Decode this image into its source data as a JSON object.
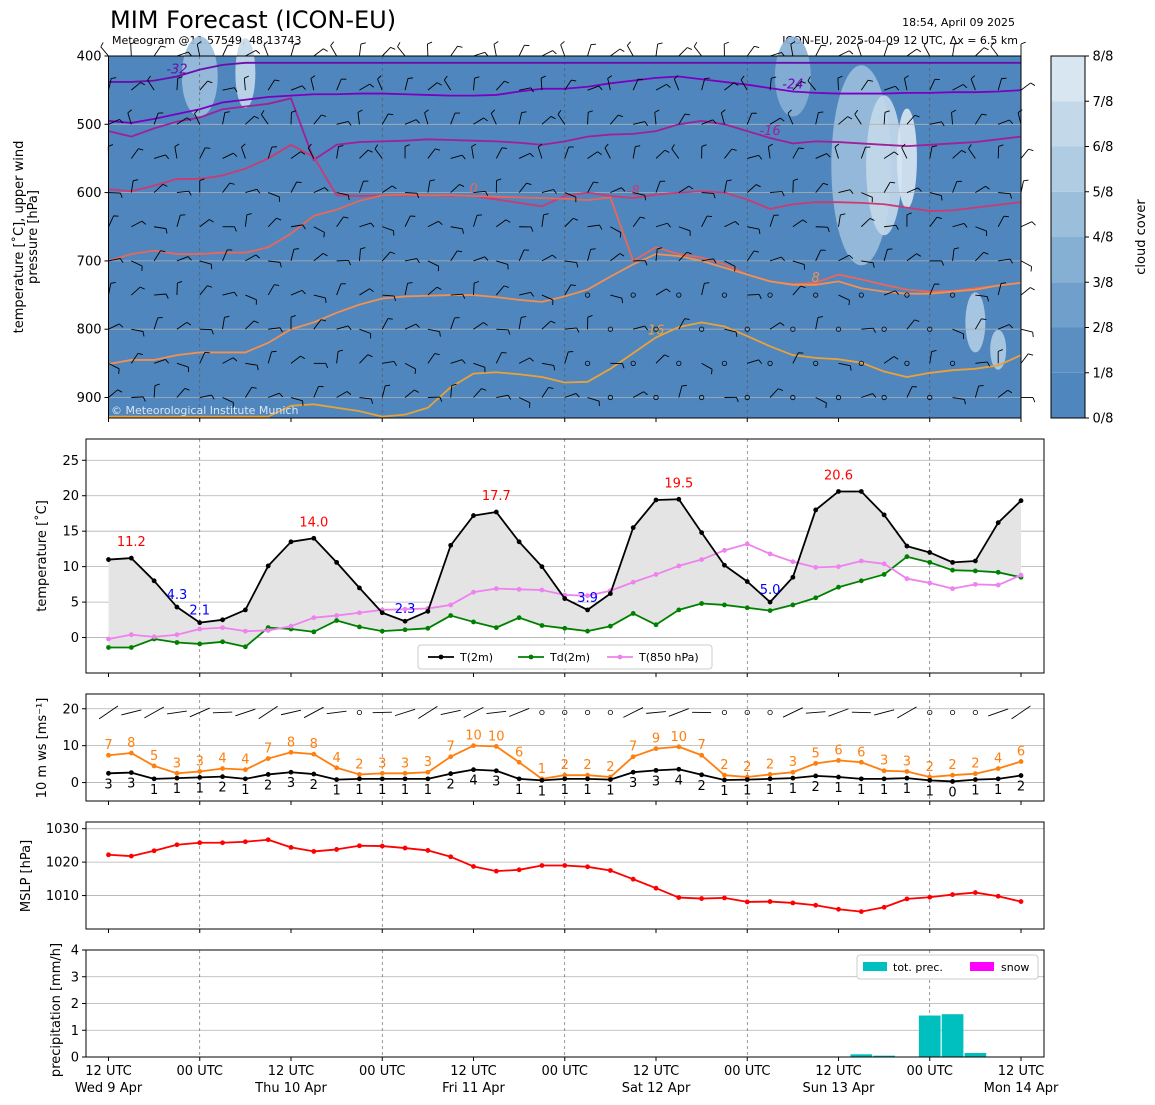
{
  "header": {
    "title": "MIM Forecast (ICON-EU)",
    "subtitle": "Meteogram @11.57549, 48.13743",
    "timestamp": "18:54, April 09 2025",
    "run_info": "ICON-EU, 2025-04-09 12 UTC, Δx = 6.5 km",
    "copyright": "© Meteorological Institute Munich"
  },
  "colors": {
    "t2m": "#000000",
    "td2m": "#008000",
    "t850": "#ee82ee",
    "mslp": "#ff0000",
    "wind_speed": "#ff7f0e",
    "wind_gust": "#000000",
    "precip": "#00bfbf",
    "snow": "#ff00ff",
    "cloud_base": "#4f86bd",
    "max_label": "#ff0000",
    "min_label": "#0000ff"
  },
  "x_axis": {
    "ticks": [
      {
        "line1": "12 UTC",
        "line2": "Wed 9 Apr"
      },
      {
        "line1": "00 UTC",
        "line2": ""
      },
      {
        "line1": "12 UTC",
        "line2": "Thu 10 Apr"
      },
      {
        "line1": "00 UTC",
        "line2": ""
      },
      {
        "line1": "12 UTC",
        "line2": "Fri 11 Apr"
      },
      {
        "line1": "00 UTC",
        "line2": ""
      },
      {
        "line1": "12 UTC",
        "line2": "Sat 12 Apr"
      },
      {
        "line1": "00 UTC",
        "line2": ""
      },
      {
        "line1": "12 UTC",
        "line2": "Sun 13 Apr"
      },
      {
        "line1": "00 UTC",
        "line2": ""
      },
      {
        "line1": "12 UTC",
        "line2": "Mon 14 Apr"
      }
    ]
  },
  "chart_data": [
    {
      "type": "heatmap",
      "name": "upper-air",
      "ylabel": "temperature [˚C], upper wind\npressure [hPa]",
      "yticks": [
        400,
        500,
        600,
        700,
        800,
        900
      ],
      "ylim": [
        930,
        400
      ],
      "colorbar": {
        "label": "cloud cover",
        "ticks": [
          "0/8",
          "1/8",
          "2/8",
          "3/8",
          "4/8",
          "5/8",
          "6/8",
          "7/8",
          "8/8"
        ],
        "colors": [
          "#4f86bd",
          "#5b8fc2",
          "#709fcb",
          "#86afd4",
          "#9bbedb",
          "#afcce3",
          "#c3d9ea",
          "#d8e6f1",
          "#edf3f8"
        ]
      },
      "isotherms": [
        {
          "label": "-32",
          "color": "#6a0dad",
          "p": [
            438,
            438,
            436,
            430,
            420,
            413,
            410,
            410,
            410,
            410,
            410,
            410,
            410,
            410,
            410,
            410,
            410,
            410,
            410,
            410,
            410,
            410,
            410,
            410,
            410,
            410,
            410,
            410,
            410,
            410,
            410,
            410,
            410,
            410,
            410,
            410,
            410,
            410,
            410,
            410,
            410
          ]
        },
        {
          "label": "-24",
          "color": "#7b00c0",
          "p": [
            495,
            498,
            492,
            485,
            478,
            468,
            464,
            460,
            458,
            456,
            456,
            455,
            455,
            456,
            457,
            458,
            458,
            457,
            452,
            448,
            448,
            445,
            440,
            436,
            432,
            430,
            434,
            438,
            442,
            447,
            452,
            454,
            455,
            455,
            455,
            454,
            454,
            453,
            453,
            452,
            450
          ]
        },
        {
          "label": "-16",
          "color": "#a0209a",
          "p": [
            510,
            518,
            506,
            496,
            490,
            478,
            474,
            470,
            462,
            552,
            530,
            526,
            525,
            524,
            522,
            523,
            524,
            525,
            527,
            530,
            525,
            518,
            515,
            514,
            510,
            500,
            495,
            500,
            510,
            520,
            528,
            525,
            526,
            528,
            530,
            532,
            530,
            528,
            526,
            522,
            518
          ]
        },
        {
          "label": "-8",
          "color": "#cc3a74",
          "p": [
            595,
            598,
            590,
            580,
            580,
            575,
            565,
            550,
            530,
            548,
            604,
            605,
            604,
            604,
            604,
            605,
            605,
            610,
            615,
            620,
            605,
            600,
            605,
            608,
            603,
            600,
            598,
            600,
            610,
            624,
            617,
            614,
            614,
            615,
            617,
            622,
            627,
            626,
            622,
            618,
            614
          ]
        },
        {
          "label": "0",
          "color": "#e8675a",
          "p": [
            700,
            690,
            685,
            690,
            690,
            688,
            688,
            680,
            660,
            634,
            625,
            612,
            604,
            603,
            604,
            604,
            605,
            606,
            607,
            608,
            609,
            611,
            607,
            700,
            680,
            690,
            695,
            705,
            720,
            730,
            734,
            732,
            720,
            727,
            735,
            742,
            745,
            744,
            740,
            736,
            732
          ]
        },
        {
          "label": "8",
          "color": "#f19052",
          "p": [
            851,
            845,
            845,
            838,
            834,
            834,
            834,
            820,
            800,
            790,
            776,
            764,
            755,
            752,
            751,
            750,
            750,
            753,
            757,
            760,
            752,
            742,
            723,
            705,
            690,
            693,
            700,
            710,
            720,
            730,
            735,
            735,
            730,
            740,
            745,
            748,
            748,
            745,
            742,
            736,
            732
          ]
        },
        {
          "label": "16",
          "color": "#e9a23b",
          "p": [
            930,
            930,
            930,
            930,
            930,
            930,
            930,
            930,
            912,
            910,
            915,
            920,
            930,
            925,
            915,
            885,
            865,
            863,
            866,
            870,
            878,
            877,
            858,
            835,
            812,
            797,
            790,
            796,
            810,
            825,
            838,
            842,
            844,
            849,
            862,
            870,
            864,
            860,
            858,
            853,
            838
          ]
        }
      ],
      "wind_levels_hpa": [
        400,
        450,
        500,
        550,
        600,
        650,
        700,
        750,
        800,
        850,
        900
      ]
    },
    {
      "type": "line",
      "name": "surface-temperature",
      "ylabel": "temperature [˚C]",
      "ylim": [
        -5,
        28
      ],
      "yticks": [
        0,
        5,
        10,
        15,
        20,
        25
      ],
      "legend_placement": "bottom-center",
      "series": [
        {
          "name": "T(2m)",
          "values": [
            11.0,
            11.2,
            8.0,
            4.3,
            2.1,
            2.5,
            3.9,
            10.1,
            13.5,
            14.0,
            10.6,
            7.0,
            3.5,
            2.3,
            3.7,
            13.0,
            17.2,
            17.7,
            13.5,
            10.0,
            5.5,
            3.9,
            6.2,
            15.5,
            19.4,
            19.5,
            14.8,
            10.2,
            7.9,
            5.0,
            8.5,
            18.0,
            20.6,
            20.6,
            17.3,
            12.9,
            12.0,
            10.6,
            10.8,
            16.2,
            19.3
          ]
        },
        {
          "name": "Td(2m)",
          "values": [
            -1.4,
            -1.4,
            -0.2,
            -0.7,
            -0.9,
            -0.6,
            -1.3,
            1.4,
            1.2,
            0.8,
            2.4,
            1.5,
            0.9,
            1.1,
            1.3,
            3.1,
            2.2,
            1.4,
            2.8,
            1.7,
            1.3,
            0.9,
            1.6,
            3.4,
            1.8,
            3.9,
            4.8,
            4.6,
            4.2,
            3.8,
            4.6,
            5.6,
            7.1,
            8.0,
            8.9,
            11.4,
            10.6,
            9.5,
            9.4,
            9.2,
            8.5
          ]
        },
        {
          "name": "T(850 hPa)",
          "values": [
            -0.2,
            0.4,
            0.1,
            0.4,
            1.2,
            1.4,
            0.9,
            1.0,
            1.6,
            2.8,
            3.1,
            3.5,
            3.9,
            4.0,
            4.1,
            4.6,
            6.4,
            6.9,
            6.8,
            6.7,
            6.0,
            5.9,
            6.6,
            7.8,
            8.9,
            10.1,
            11.0,
            12.3,
            13.2,
            11.8,
            10.7,
            9.9,
            10.0,
            10.8,
            10.4,
            8.3,
            7.7,
            6.9,
            7.5,
            7.4,
            8.8
          ]
        }
      ],
      "annotations": [
        {
          "text": "11.2",
          "index": 1,
          "kind": "max"
        },
        {
          "text": "4.3",
          "index": 3,
          "kind": "min"
        },
        {
          "text": "2.1",
          "index": 4,
          "kind": "min"
        },
        {
          "text": "14.0",
          "index": 9,
          "kind": "max"
        },
        {
          "text": "2.3",
          "index": 13,
          "kind": "min"
        },
        {
          "text": "17.7",
          "index": 17,
          "kind": "max"
        },
        {
          "text": "3.9",
          "index": 21,
          "kind": "min"
        },
        {
          "text": "19.5",
          "index": 25,
          "kind": "max"
        },
        {
          "text": "5.0",
          "index": 29,
          "kind": "min"
        },
        {
          "text": "20.6",
          "index": 32,
          "kind": "max"
        }
      ]
    },
    {
      "type": "line",
      "name": "wind",
      "ylabel": "10 m ws [ms⁻¹]",
      "ylim": [
        -5,
        24
      ],
      "yticks": [
        0,
        10,
        20
      ],
      "series": [
        {
          "values": [
            7.4,
            8.0,
            4.5,
            2.5,
            3.0,
            3.8,
            3.5,
            6.5,
            8.2,
            7.7,
            4.0,
            2.2,
            2.5,
            2.5,
            2.8,
            7.0,
            10.0,
            9.8,
            5.5,
            1.0,
            2.0,
            2.0,
            1.5,
            7.0,
            9.2,
            9.7,
            7.4,
            2.0,
            1.5,
            2.2,
            2.8,
            5.2,
            6.0,
            5.5,
            3.2,
            3.0,
            1.5,
            2.0,
            2.4,
            3.8,
            5.7
          ]
        },
        {
          "values": [
            2.5,
            2.7,
            1.0,
            1.2,
            1.4,
            1.6,
            1.0,
            2.2,
            2.8,
            2.3,
            0.8,
            1.0,
            1.0,
            1.0,
            1.0,
            2.4,
            3.5,
            3.2,
            1.0,
            0.6,
            1.0,
            1.0,
            0.8,
            2.8,
            3.3,
            3.6,
            2.1,
            0.7,
            0.8,
            1.0,
            1.2,
            1.8,
            1.5,
            1.0,
            1.0,
            1.2,
            0.6,
            0.3,
            0.8,
            1.0,
            1.9
          ]
        }
      ],
      "upper_labels": [
        "7",
        "8",
        "5",
        "3",
        "3",
        "4",
        "4",
        "7",
        "8",
        "8",
        "4",
        "2",
        "3",
        "3",
        "3",
        "7",
        "10",
        "10",
        "6",
        "1",
        "2",
        "2",
        "2",
        "7",
        "9",
        "10",
        "7",
        "2",
        "2",
        "2",
        "3",
        "5",
        "6",
        "6",
        "3",
        "3",
        "2",
        "2",
        "2",
        "4",
        "6"
      ],
      "lower_labels": [
        "3",
        "3",
        "1",
        "1",
        "1",
        "2",
        "1",
        "2",
        "3",
        "2",
        "1",
        "1",
        "1",
        "1",
        "1",
        "2",
        "4",
        "3",
        "1",
        "1",
        "1",
        "1",
        "1",
        "3",
        "3",
        "4",
        "2",
        "1",
        "1",
        "1",
        "1",
        "2",
        "1",
        "1",
        "1",
        "1",
        "1",
        "0",
        "1",
        "1",
        "2"
      ],
      "barb_values_ms": [
        7,
        8,
        5,
        3,
        3,
        4,
        4,
        7,
        8,
        8,
        4,
        2,
        3,
        3,
        3,
        7,
        10,
        10,
        6,
        1,
        2,
        2,
        2,
        7,
        9,
        10,
        7,
        2,
        2,
        2,
        3,
        5,
        6,
        6,
        3,
        3,
        2,
        2,
        2,
        4,
        6
      ]
    },
    {
      "type": "line",
      "name": "mslp",
      "ylabel": "MSLP [hPa]",
      "ylim": [
        1000,
        1032
      ],
      "yticks": [
        1010,
        1020,
        1030
      ],
      "series": [
        {
          "values": [
            1022.2,
            1021.8,
            1023.4,
            1025.2,
            1025.8,
            1025.8,
            1026.1,
            1026.7,
            1024.4,
            1023.2,
            1023.8,
            1024.9,
            1024.8,
            1024.2,
            1023.5,
            1021.6,
            1018.7,
            1017.3,
            1017.7,
            1019.0,
            1019.0,
            1018.6,
            1017.5,
            1014.9,
            1012.2,
            1009.4,
            1009.1,
            1009.3,
            1008.1,
            1008.2,
            1007.8,
            1007.1,
            1005.9,
            1005.2,
            1006.5,
            1009.0,
            1009.5,
            1010.3,
            1010.9,
            1009.8,
            1008.2
          ]
        }
      ]
    },
    {
      "type": "bar",
      "name": "precipitation",
      "ylabel": "precipitation [mm/h]",
      "ylim": [
        0,
        4
      ],
      "yticks": [
        0,
        1,
        2,
        3,
        4
      ],
      "legend_placement": "top-right",
      "series": [
        {
          "name": "tot. prec.",
          "values": [
            0,
            0,
            0,
            0,
            0,
            0,
            0,
            0,
            0,
            0,
            0,
            0,
            0,
            0,
            0,
            0,
            0,
            0,
            0,
            0,
            0,
            0,
            0,
            0,
            0,
            0,
            0,
            0,
            0,
            0,
            0,
            0,
            0,
            0.1,
            0.05,
            0,
            1.55,
            1.6,
            0.15,
            0,
            0
          ]
        },
        {
          "name": "snow",
          "values": [
            0,
            0,
            0,
            0,
            0,
            0,
            0,
            0,
            0,
            0,
            0,
            0,
            0,
            0,
            0,
            0,
            0,
            0,
            0,
            0,
            0,
            0,
            0,
            0,
            0,
            0,
            0,
            0,
            0,
            0,
            0,
            0,
            0,
            0,
            0,
            0,
            0,
            0,
            0,
            0,
            0
          ]
        }
      ]
    }
  ]
}
